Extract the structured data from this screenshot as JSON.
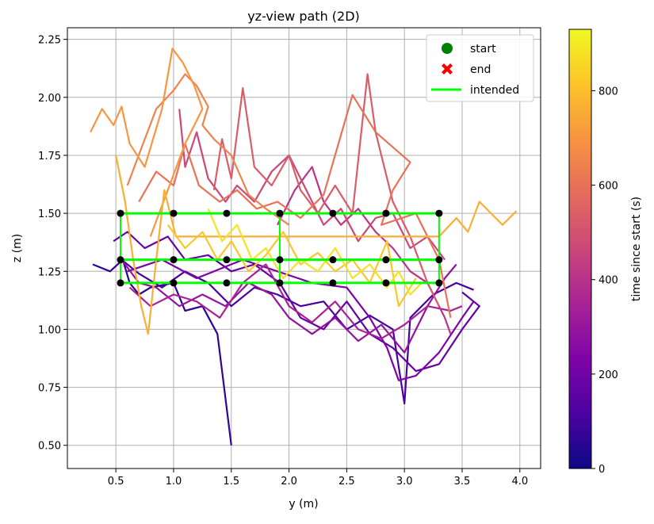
{
  "chart_data": {
    "type": "line",
    "title": "yz-view path (2D)",
    "xlabel": "y (m)",
    "ylabel": "z (m)",
    "xlim": [
      0.08,
      4.18
    ],
    "ylim": [
      0.4,
      2.3
    ],
    "xticks": [
      0.5,
      1.0,
      1.5,
      2.0,
      2.5,
      3.0,
      3.5,
      4.0
    ],
    "xtick_labels": [
      "0.5",
      "1.0",
      "1.5",
      "2.0",
      "2.5",
      "3.0",
      "3.5",
      "4.0"
    ],
    "yticks": [
      0.5,
      0.75,
      1.0,
      1.25,
      1.5,
      1.75,
      2.0,
      2.25
    ],
    "ytick_labels": [
      "0.50",
      "0.75",
      "1.00",
      "1.25",
      "1.50",
      "1.75",
      "2.00",
      "2.25"
    ],
    "grid": true,
    "legend": {
      "placement": "top-right",
      "entries": [
        {
          "label": "start",
          "marker": "circle",
          "color": "#008000"
        },
        {
          "label": "end",
          "marker": "x",
          "color": "#ff0000"
        },
        {
          "label": "intended",
          "marker": "line",
          "color": "#00ff00"
        }
      ]
    },
    "colorbar": {
      "label": "time since start (s)",
      "colormap": "plasma",
      "range": [
        0,
        930
      ],
      "ticks": [
        0,
        200,
        400,
        600,
        800
      ],
      "tick_labels": [
        "0",
        "200",
        "400",
        "600",
        "800"
      ]
    },
    "intended_path": {
      "color": "#00ff00",
      "rows_z": [
        1.5,
        1.3,
        1.2
      ],
      "waypoint_y": [
        0.54,
        1.0,
        1.46,
        1.92,
        2.38,
        2.84,
        3.3
      ],
      "connector_y": 1.92
    },
    "waypoints": {
      "color": "#000000",
      "points": [
        [
          0.54,
          1.5
        ],
        [
          1.0,
          1.5
        ],
        [
          1.46,
          1.5
        ],
        [
          1.92,
          1.5
        ],
        [
          2.38,
          1.5
        ],
        [
          2.84,
          1.5
        ],
        [
          3.3,
          1.5
        ],
        [
          0.54,
          1.3
        ],
        [
          1.0,
          1.3
        ],
        [
          1.46,
          1.3
        ],
        [
          1.92,
          1.3
        ],
        [
          2.38,
          1.3
        ],
        [
          2.84,
          1.3
        ],
        [
          3.3,
          1.3
        ],
        [
          0.54,
          1.2
        ],
        [
          1.0,
          1.2
        ],
        [
          1.46,
          1.2
        ],
        [
          1.92,
          1.2
        ],
        [
          2.38,
          1.2
        ],
        [
          2.84,
          1.2
        ],
        [
          3.3,
          1.2
        ]
      ]
    },
    "paths": [
      {
        "t": 60,
        "points": [
          [
            0.3,
            1.28
          ],
          [
            0.45,
            1.25
          ],
          [
            0.56,
            1.3
          ],
          [
            0.62,
            1.2
          ],
          [
            0.7,
            1.15
          ],
          [
            0.8,
            1.18
          ],
          [
            1.0,
            1.2
          ],
          [
            1.1,
            1.08
          ],
          [
            1.25,
            1.1
          ],
          [
            1.38,
            0.98
          ],
          [
            1.5,
            0.5
          ]
        ]
      },
      {
        "t": 110,
        "points": [
          [
            0.55,
            1.3
          ],
          [
            0.7,
            1.24
          ],
          [
            0.9,
            1.18
          ],
          [
            1.1,
            1.25
          ],
          [
            1.3,
            1.2
          ],
          [
            1.5,
            1.1
          ],
          [
            1.7,
            1.18
          ],
          [
            1.9,
            1.15
          ],
          [
            2.1,
            1.1
          ],
          [
            2.3,
            1.12
          ],
          [
            2.5,
            1.0
          ],
          [
            2.7,
            1.06
          ],
          [
            2.9,
            1.0
          ],
          [
            3.0,
            0.68
          ],
          [
            3.05,
            1.05
          ],
          [
            3.25,
            1.15
          ],
          [
            3.45,
            1.2
          ],
          [
            3.6,
            1.17
          ]
        ]
      },
      {
        "t": 170,
        "points": [
          [
            0.48,
            1.38
          ],
          [
            0.6,
            1.42
          ],
          [
            0.75,
            1.35
          ],
          [
            0.95,
            1.4
          ],
          [
            1.1,
            1.3
          ],
          [
            1.3,
            1.32
          ],
          [
            1.5,
            1.25
          ],
          [
            1.7,
            1.28
          ],
          [
            1.92,
            1.2
          ],
          [
            2.1,
            1.05
          ],
          [
            2.3,
            1.0
          ],
          [
            2.5,
            1.12
          ],
          [
            2.7,
            0.98
          ],
          [
            2.9,
            0.92
          ],
          [
            3.1,
            0.82
          ],
          [
            3.3,
            0.85
          ],
          [
            3.5,
            1.0
          ],
          [
            3.65,
            1.1
          ],
          [
            3.5,
            1.16
          ]
        ]
      },
      {
        "t": 230,
        "points": [
          [
            0.6,
            1.25
          ],
          [
            0.9,
            1.3
          ],
          [
            1.2,
            1.22
          ],
          [
            1.6,
            1.3
          ],
          [
            1.9,
            1.25
          ],
          [
            2.2,
            1.2
          ],
          [
            2.5,
            1.18
          ],
          [
            2.7,
            1.05
          ],
          [
            2.85,
            0.92
          ],
          [
            2.95,
            0.78
          ],
          [
            3.1,
            0.8
          ],
          [
            3.3,
            0.9
          ],
          [
            3.5,
            1.05
          ],
          [
            3.6,
            1.12
          ]
        ]
      },
      {
        "t": 290,
        "points": [
          [
            0.55,
            1.3
          ],
          [
            0.7,
            1.2
          ],
          [
            0.85,
            1.18
          ],
          [
            1.05,
            1.1
          ],
          [
            1.25,
            1.15
          ],
          [
            1.45,
            1.1
          ],
          [
            1.65,
            1.2
          ],
          [
            1.85,
            1.15
          ],
          [
            2.0,
            1.05
          ],
          [
            2.2,
            0.98
          ],
          [
            2.4,
            1.05
          ],
          [
            2.6,
            0.95
          ],
          [
            2.8,
            1.02
          ],
          [
            3.0,
            0.9
          ],
          [
            3.2,
            1.1
          ],
          [
            3.35,
            1.22
          ],
          [
            3.45,
            1.28
          ]
        ]
      },
      {
        "t": 350,
        "points": [
          [
            0.62,
            1.18
          ],
          [
            0.8,
            1.1
          ],
          [
            1.0,
            1.15
          ],
          [
            1.2,
            1.12
          ],
          [
            1.4,
            1.05
          ],
          [
            1.6,
            1.2
          ],
          [
            1.8,
            1.28
          ],
          [
            2.0,
            1.1
          ],
          [
            2.2,
            1.03
          ],
          [
            2.4,
            1.12
          ],
          [
            2.6,
            1.0
          ],
          [
            2.8,
            0.96
          ],
          [
            3.0,
            1.02
          ],
          [
            3.2,
            1.1
          ],
          [
            3.4,
            1.08
          ],
          [
            3.5,
            1.1
          ]
        ]
      },
      {
        "t": 410,
        "points": [
          [
            1.9,
            1.45
          ],
          [
            2.05,
            1.6
          ],
          [
            2.2,
            1.7
          ],
          [
            2.3,
            1.55
          ],
          [
            2.45,
            1.45
          ],
          [
            2.6,
            1.52
          ],
          [
            2.75,
            1.42
          ],
          [
            2.9,
            1.35
          ],
          [
            3.05,
            1.25
          ],
          [
            3.2,
            1.2
          ],
          [
            3.35,
            1.05
          ],
          [
            3.4,
            0.98
          ]
        ]
      },
      {
        "t": 470,
        "points": [
          [
            1.05,
            1.95
          ],
          [
            1.1,
            1.7
          ],
          [
            1.2,
            1.85
          ],
          [
            1.3,
            1.65
          ],
          [
            1.45,
            1.55
          ],
          [
            1.55,
            1.62
          ],
          [
            1.7,
            1.55
          ],
          [
            1.85,
            1.68
          ],
          [
            2.0,
            1.75
          ],
          [
            2.15,
            1.6
          ],
          [
            2.3,
            1.45
          ],
          [
            2.45,
            1.52
          ],
          [
            2.6,
            1.38
          ],
          [
            2.75,
            1.48
          ],
          [
            2.9,
            1.5
          ],
          [
            3.05,
            1.35
          ],
          [
            3.2,
            1.4
          ],
          [
            3.35,
            1.3
          ]
        ]
      },
      {
        "t": 530,
        "points": [
          [
            1.35,
            1.6
          ],
          [
            1.42,
            1.82
          ],
          [
            1.5,
            1.65
          ],
          [
            1.6,
            2.04
          ],
          [
            1.7,
            1.7
          ],
          [
            1.85,
            1.62
          ],
          [
            2.0,
            1.75
          ],
          [
            2.1,
            1.6
          ],
          [
            2.25,
            1.5
          ],
          [
            2.4,
            1.62
          ],
          [
            2.55,
            1.5
          ],
          [
            2.68,
            2.1
          ],
          [
            2.75,
            1.85
          ],
          [
            2.9,
            1.55
          ],
          [
            3.05,
            1.4
          ],
          [
            3.2,
            1.2
          ],
          [
            3.3,
            1.1
          ]
        ]
      },
      {
        "t": 600,
        "points": [
          [
            0.7,
            1.55
          ],
          [
            0.85,
            1.68
          ],
          [
            1.0,
            1.62
          ],
          [
            1.1,
            1.8
          ],
          [
            1.22,
            1.62
          ],
          [
            1.4,
            1.55
          ],
          [
            1.55,
            1.6
          ],
          [
            1.72,
            1.52
          ],
          [
            1.9,
            1.55
          ],
          [
            2.1,
            1.48
          ],
          [
            2.3,
            1.58
          ],
          [
            2.55,
            2.01
          ],
          [
            2.75,
            1.85
          ],
          [
            3.05,
            1.72
          ],
          [
            2.9,
            1.6
          ],
          [
            2.8,
            1.45
          ],
          [
            3.1,
            1.5
          ],
          [
            3.3,
            1.3
          ],
          [
            3.4,
            1.05
          ]
        ]
      },
      {
        "t": 650,
        "points": [
          [
            0.6,
            1.62
          ],
          [
            0.72,
            1.78
          ],
          [
            0.85,
            1.95
          ],
          [
            1.0,
            2.03
          ],
          [
            1.1,
            2.1
          ],
          [
            1.2,
            2.05
          ],
          [
            1.3,
            1.96
          ],
          [
            1.25,
            1.88
          ],
          [
            1.35,
            1.82
          ],
          [
            1.5,
            1.75
          ],
          [
            1.65,
            1.58
          ],
          [
            1.8,
            1.52
          ],
          [
            2.0,
            1.45
          ]
        ]
      },
      {
        "t": 700,
        "points": [
          [
            0.28,
            1.85
          ],
          [
            0.38,
            1.95
          ],
          [
            0.48,
            1.88
          ],
          [
            0.55,
            1.96
          ],
          [
            0.62,
            1.8
          ],
          [
            0.75,
            1.7
          ],
          [
            0.9,
            1.95
          ],
          [
            0.99,
            2.21
          ],
          [
            1.08,
            2.15
          ],
          [
            1.18,
            2.05
          ],
          [
            1.25,
            1.95
          ],
          [
            1.1,
            1.8
          ],
          [
            0.95,
            1.6
          ],
          [
            0.8,
            1.4
          ]
        ]
      },
      {
        "t": 760,
        "points": [
          [
            0.5,
            1.75
          ],
          [
            0.58,
            1.55
          ],
          [
            0.65,
            1.3
          ],
          [
            0.72,
            1.1
          ],
          [
            0.78,
            0.98
          ],
          [
            0.85,
            1.3
          ],
          [
            0.92,
            1.6
          ],
          [
            1.02,
            1.4
          ],
          [
            3.3,
            1.4
          ],
          [
            3.45,
            1.48
          ],
          [
            3.55,
            1.42
          ],
          [
            3.65,
            1.55
          ],
          [
            3.75,
            1.5
          ],
          [
            3.85,
            1.45
          ],
          [
            3.97,
            1.51
          ]
        ]
      },
      {
        "t": 820,
        "points": [
          [
            0.95,
            1.45
          ],
          [
            1.1,
            1.35
          ],
          [
            1.25,
            1.42
          ],
          [
            1.38,
            1.3
          ],
          [
            1.5,
            1.38
          ],
          [
            1.65,
            1.25
          ],
          [
            1.8,
            1.32
          ],
          [
            1.95,
            1.42
          ],
          [
            2.1,
            1.28
          ],
          [
            2.25,
            1.33
          ],
          [
            2.4,
            1.25
          ],
          [
            2.55,
            1.3
          ],
          [
            2.7,
            1.2
          ],
          [
            2.85,
            1.38
          ],
          [
            2.95,
            1.1
          ],
          [
            3.1,
            1.22
          ]
        ]
      },
      {
        "t": 880,
        "points": [
          [
            1.3,
            1.52
          ],
          [
            1.42,
            1.38
          ],
          [
            1.55,
            1.45
          ],
          [
            1.68,
            1.3
          ],
          [
            1.8,
            1.35
          ],
          [
            1.95,
            1.22
          ],
          [
            2.1,
            1.3
          ],
          [
            2.25,
            1.25
          ],
          [
            2.4,
            1.35
          ],
          [
            2.55,
            1.22
          ],
          [
            2.7,
            1.28
          ],
          [
            2.85,
            1.18
          ],
          [
            2.95,
            1.25
          ],
          [
            3.05,
            1.15
          ],
          [
            3.15,
            1.2
          ]
        ]
      }
    ]
  }
}
